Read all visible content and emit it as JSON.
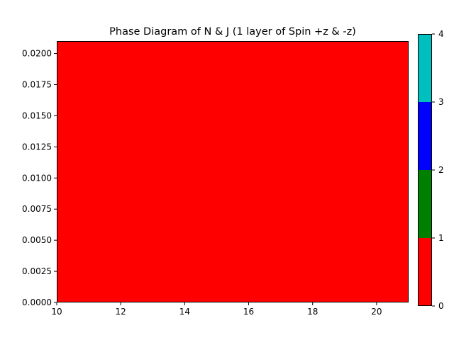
{
  "chart_data": [
    {
      "type": "heatmap",
      "title": "Phase Diagram of N & J (1 layer of Spin +z & -z)",
      "xlabel": "",
      "ylabel": "",
      "xlim": [
        10,
        21
      ],
      "ylim": [
        0,
        0.021
      ],
      "x_ticks": [
        "10",
        "12",
        "14",
        "16",
        "18",
        "20"
      ],
      "x_tick_values": [
        10,
        12,
        14,
        16,
        18,
        20
      ],
      "y_ticks": [
        "0.0000",
        "0.0025",
        "0.0050",
        "0.0075",
        "0.0100",
        "0.0125",
        "0.0150",
        "0.0175",
        "0.0200"
      ],
      "y_tick_values": [
        0,
        0.0025,
        0.005,
        0.0075,
        0.01,
        0.0125,
        0.015,
        0.0175,
        0.02
      ],
      "grid": false,
      "regions": [
        {
          "x_range": [
            10,
            21
          ],
          "y_range": [
            0,
            0.021
          ],
          "phase_value": 0,
          "color": "#ff0000"
        }
      ]
    },
    {
      "type": "colorbar",
      "range": [
        0,
        4
      ],
      "ticks": [
        "0",
        "1",
        "2",
        "3",
        "4"
      ],
      "tick_values": [
        0,
        1,
        2,
        3,
        4
      ],
      "bands": [
        {
          "from": 0,
          "to": 1,
          "color": "#ff0000"
        },
        {
          "from": 1,
          "to": 2,
          "color": "#008000"
        },
        {
          "from": 2,
          "to": 3,
          "color": "#0000ff"
        },
        {
          "from": 3,
          "to": 4,
          "color": "#00bfbf"
        }
      ]
    }
  ]
}
